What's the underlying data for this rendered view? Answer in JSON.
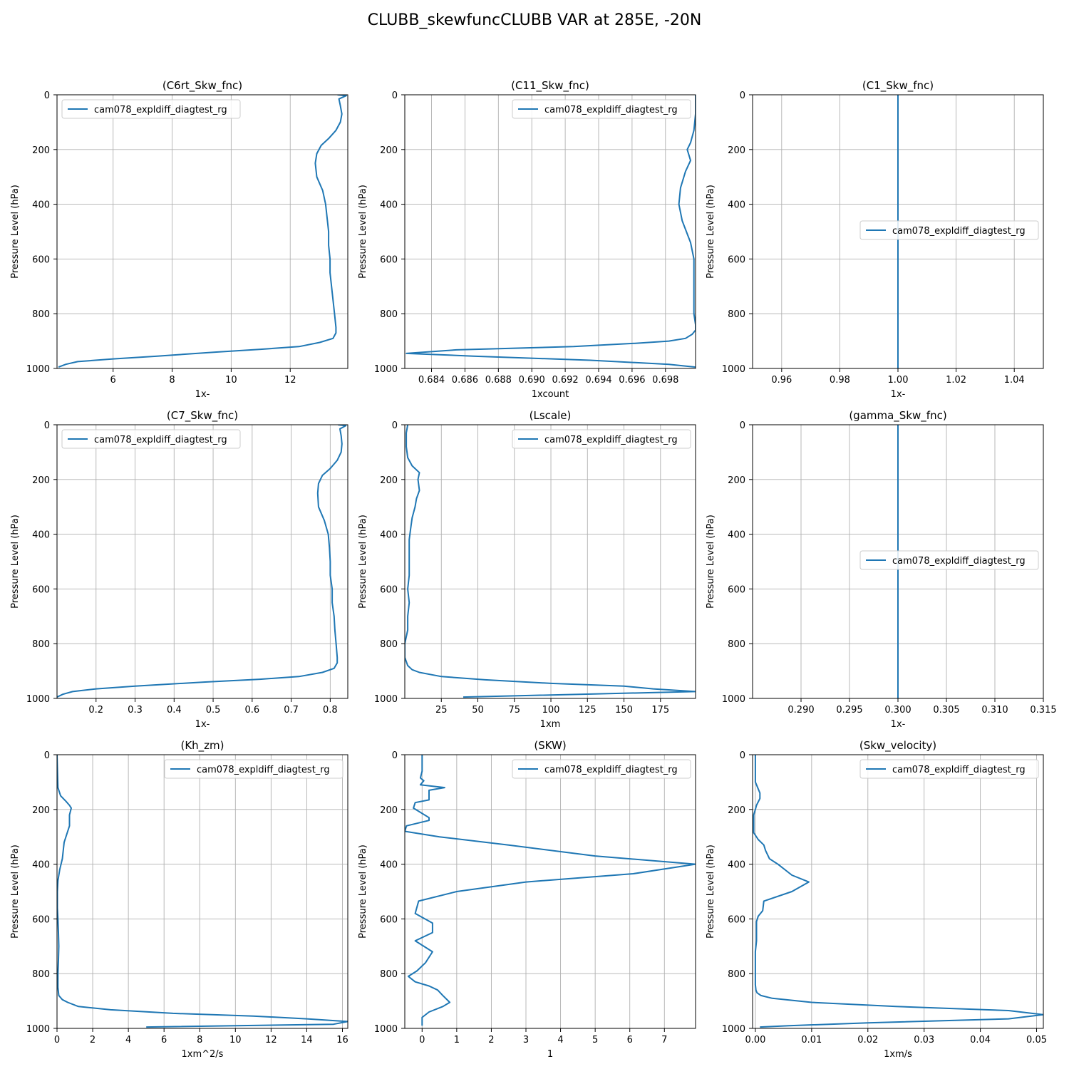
{
  "figure": {
    "title": "CLUBB_skewfuncCLUBB VAR at 285E, -20N"
  },
  "colors": {
    "series": "#1f77b4",
    "grid": "#b0b0b0",
    "legend_border": "#cccccc"
  },
  "chart_data": [
    {
      "type": "line",
      "title": "(C6rt_Skw_fnc)",
      "xlabel": "1x-",
      "ylabel": "Pressure Level (hPa)",
      "xlim": [
        4.1,
        13.95
      ],
      "ylim": [
        1000,
        0
      ],
      "xticks": [
        6,
        8,
        10,
        12
      ],
      "yticks": [
        0,
        200,
        400,
        600,
        800,
        1000
      ],
      "grid": true,
      "legend": "upper left",
      "series": [
        {
          "name": "cam078_expldiff_diagtest_rg",
          "x": [
            13.6,
            13.9,
            13.65,
            13.7,
            13.75,
            13.7,
            13.55,
            13.3,
            13.05,
            12.9,
            12.85,
            12.9,
            13.1,
            13.2,
            13.25,
            13.3,
            13.3,
            13.35,
            13.35,
            13.4,
            13.45,
            13.5,
            13.55,
            13.55,
            13.45,
            13.0,
            12.3,
            11.0,
            9.5,
            7.5,
            6.0,
            4.8,
            4.4,
            4.15
          ],
          "y": [
            0,
            3,
            15,
            40,
            70,
            100,
            130,
            160,
            185,
            215,
            250,
            300,
            350,
            400,
            450,
            500,
            550,
            600,
            650,
            700,
            750,
            800,
            850,
            870,
            890,
            905,
            920,
            930,
            940,
            955,
            965,
            975,
            985,
            995
          ]
        }
      ]
    },
    {
      "type": "line",
      "title": "(C11_Skw_fnc)",
      "xlabel": "1xcount",
      "ylabel": "Pressure Level (hPa)",
      "xlim": [
        0.6824,
        0.6998
      ],
      "ylim": [
        1000,
        0
      ],
      "xticks": [
        0.684,
        0.686,
        0.688,
        0.69,
        0.692,
        0.694,
        0.696,
        0.698
      ],
      "yticks": [
        0,
        200,
        400,
        600,
        800,
        1000
      ],
      "grid": true,
      "legend": "upper right",
      "series": [
        {
          "name": "cam078_expldiff_diagtest_rg",
          "x": [
            0.6998,
            0.6998,
            0.6997,
            0.6995,
            0.6993,
            0.6995,
            0.6992,
            0.6989,
            0.6988,
            0.699,
            0.6995,
            0.6997,
            0.6997,
            0.6997,
            0.6998,
            0.6998,
            0.6996,
            0.6992,
            0.6982,
            0.6962,
            0.6925,
            0.6855,
            0.6825,
            0.6865,
            0.6935,
            0.6982,
            0.6998
          ],
          "y": [
            0,
            70,
            130,
            175,
            200,
            240,
            280,
            340,
            400,
            460,
            540,
            600,
            700,
            800,
            840,
            860,
            875,
            890,
            900,
            908,
            920,
            932,
            945,
            955,
            970,
            985,
            995
          ]
        }
      ]
    },
    {
      "type": "line",
      "title": "(C1_Skw_fnc)",
      "xlabel": "1x-",
      "ylabel": "Pressure Level (hPa)",
      "xlim": [
        0.95,
        1.05
      ],
      "ylim": [
        1000,
        0
      ],
      "xticks": [
        0.96,
        0.98,
        1.0,
        1.02,
        1.04
      ],
      "yticks": [
        0,
        200,
        400,
        600,
        800,
        1000
      ],
      "grid": true,
      "legend": "center right",
      "series": [
        {
          "name": "cam078_expldiff_diagtest_rg",
          "x": [
            1.0,
            1.0
          ],
          "y": [
            0,
            1000
          ]
        }
      ]
    },
    {
      "type": "line",
      "title": "(C7_Skw_fnc)",
      "xlabel": "1x-",
      "ylabel": "Pressure Level (hPa)",
      "xlim": [
        0.1,
        0.845
      ],
      "ylim": [
        1000,
        0
      ],
      "xticks": [
        0.2,
        0.3,
        0.4,
        0.5,
        0.6,
        0.7,
        0.8
      ],
      "yticks": [
        0,
        200,
        400,
        600,
        800,
        1000
      ],
      "grid": true,
      "legend": "upper left",
      "series": [
        {
          "name": "cam078_expldiff_diagtest_rg",
          "x": [
            0.82,
            0.84,
            0.825,
            0.828,
            0.83,
            0.828,
            0.818,
            0.8,
            0.78,
            0.77,
            0.768,
            0.77,
            0.785,
            0.795,
            0.798,
            0.8,
            0.8,
            0.805,
            0.805,
            0.81,
            0.812,
            0.815,
            0.818,
            0.818,
            0.81,
            0.78,
            0.72,
            0.62,
            0.48,
            0.3,
            0.2,
            0.14,
            0.115,
            0.1
          ],
          "y": [
            0,
            3,
            15,
            40,
            70,
            100,
            130,
            160,
            185,
            215,
            250,
            300,
            350,
            400,
            450,
            500,
            550,
            600,
            650,
            700,
            750,
            800,
            850,
            870,
            890,
            905,
            920,
            930,
            940,
            955,
            965,
            975,
            985,
            995
          ]
        }
      ]
    },
    {
      "type": "line",
      "title": "(Lscale)",
      "xlabel": "1xm",
      "ylabel": "Pressure Level (hPa)",
      "xlim": [
        0,
        199
      ],
      "ylim": [
        1000,
        0
      ],
      "xticks": [
        25,
        50,
        75,
        100,
        125,
        150,
        175
      ],
      "yticks": [
        0,
        200,
        400,
        600,
        800,
        1000
      ],
      "grid": true,
      "legend": "upper right",
      "series": [
        {
          "name": "cam078_expldiff_diagtest_rg",
          "x": [
            2,
            1,
            1,
            2,
            5,
            10,
            9,
            10,
            8,
            7,
            5,
            4,
            3,
            3,
            3,
            2,
            3,
            2,
            2,
            0,
            0,
            2,
            5,
            10,
            25,
            55,
            100,
            150,
            170,
            199,
            40
          ],
          "y": [
            0,
            30,
            80,
            120,
            150,
            175,
            200,
            240,
            270,
            300,
            340,
            380,
            420,
            480,
            550,
            600,
            650,
            700,
            750,
            800,
            850,
            880,
            895,
            905,
            920,
            932,
            945,
            955,
            965,
            975,
            995
          ]
        }
      ]
    },
    {
      "type": "line",
      "title": "(gamma_Skw_fnc)",
      "xlabel": "1x-",
      "ylabel": "Pressure Level (hPa)",
      "xlim": [
        0.285,
        0.315
      ],
      "ylim": [
        1000,
        0
      ],
      "xticks": [
        0.29,
        0.295,
        0.3,
        0.305,
        0.31,
        0.315
      ],
      "yticks": [
        0,
        200,
        400,
        600,
        800,
        1000
      ],
      "grid": true,
      "legend": "center right",
      "series": [
        {
          "name": "cam078_expldiff_diagtest_rg",
          "x": [
            0.3,
            0.3
          ],
          "y": [
            0,
            1000
          ]
        }
      ]
    },
    {
      "type": "line",
      "title": "(Kh_zm)",
      "xlabel": "1xm^2/s",
      "ylabel": "Pressure Level (hPa)",
      "xlim": [
        0,
        16.3
      ],
      "ylim": [
        1000,
        0
      ],
      "xticks": [
        0,
        2,
        4,
        6,
        8,
        10,
        12,
        14,
        16
      ],
      "yticks": [
        0,
        200,
        400,
        600,
        800,
        1000
      ],
      "grid": true,
      "legend": "upper right",
      "series": [
        {
          "name": "cam078_expldiff_diagtest_rg",
          "x": [
            0,
            0.05,
            0.2,
            0.5,
            0.7,
            0.8,
            0.7,
            0.7,
            0.6,
            0.4,
            0.3,
            0.15,
            0.05,
            0.02,
            0.02,
            0.05,
            0.08,
            0.1,
            0.08,
            0.05,
            0.05,
            0.1,
            0.3,
            0.6,
            1.2,
            3.0,
            6.5,
            11.0,
            14.0,
            16.3,
            15.5,
            5.0
          ],
          "y": [
            0,
            120,
            150,
            170,
            185,
            195,
            220,
            260,
            280,
            320,
            380,
            420,
            460,
            500,
            560,
            600,
            650,
            700,
            750,
            800,
            850,
            880,
            895,
            905,
            920,
            932,
            945,
            955,
            965,
            975,
            985,
            995
          ]
        }
      ]
    },
    {
      "type": "line",
      "title": "(SKW)",
      "xlabel": "1",
      "ylabel": "Pressure Level (hPa)",
      "xlim": [
        -0.5,
        7.9
      ],
      "ylim": [
        1000,
        0
      ],
      "xticks": [
        0,
        1,
        2,
        3,
        4,
        5,
        6,
        7
      ],
      "yticks": [
        0,
        200,
        400,
        600,
        800,
        1000
      ],
      "grid": true,
      "legend": "upper right",
      "series": [
        {
          "name": "cam078_expldiff_diagtest_rg",
          "x": [
            0,
            0,
            -0.05,
            0.05,
            -0.05,
            0.65,
            0.2,
            0.2,
            0.2,
            0.2,
            -0.2,
            -0.25,
            0.2,
            0.2,
            -0.45,
            -0.5,
            0.5,
            2.5,
            5,
            7.9,
            6.1,
            3.0,
            1.0,
            -0.1,
            -0.2,
            0.3,
            0.3,
            -0.2,
            0.3,
            0.1,
            -0.15,
            -0.4,
            -0.2,
            0.2,
            0.45,
            0.6,
            0.8,
            0.6,
            0.2,
            0.0,
            0.0
          ],
          "y": [
            0,
            60,
            85,
            95,
            110,
            120,
            130,
            145,
            155,
            165,
            175,
            195,
            230,
            240,
            260,
            280,
            300,
            330,
            370,
            400,
            435,
            465,
            500,
            535,
            580,
            615,
            650,
            680,
            720,
            760,
            790,
            810,
            830,
            845,
            860,
            880,
            905,
            920,
            940,
            960,
            990
          ]
        }
      ]
    },
    {
      "type": "line",
      "title": "(Skw_velocity)",
      "xlabel": "1xm/s",
      "ylabel": "Pressure Level (hPa)",
      "xlim": [
        -0.0005,
        0.0512
      ],
      "ylim": [
        1000,
        0
      ],
      "xticks": [
        0.0,
        0.01,
        0.02,
        0.03,
        0.04,
        0.05
      ],
      "yticks": [
        0,
        200,
        400,
        600,
        800,
        1000
      ],
      "grid": true,
      "legend": "upper right",
      "series": [
        {
          "name": "cam078_expldiff_diagtest_rg",
          "x": [
            0.0,
            0.0,
            0.0,
            0.0002,
            0.0008,
            0.0008,
            0.0002,
            0.0,
            -0.0003,
            -0.0003,
            -0.0003,
            0.0005,
            0.0015,
            0.0018,
            0.0025,
            0.004,
            0.0065,
            0.0095,
            0.0065,
            0.0015,
            0.0013,
            0.0005,
            0.0002,
            0.0002,
            0.0002,
            0.0,
            0.0,
            0.0,
            0.0,
            0.0001,
            0.0003,
            0.001,
            0.003,
            0.01,
            0.025,
            0.045,
            0.0512,
            0.045,
            0.02,
            0.006,
            0.0008
          ],
          "y": [
            0,
            50,
            100,
            110,
            140,
            160,
            185,
            200,
            220,
            250,
            285,
            310,
            330,
            350,
            380,
            400,
            440,
            465,
            500,
            535,
            570,
            590,
            610,
            640,
            680,
            720,
            760,
            800,
            840,
            860,
            870,
            880,
            890,
            905,
            920,
            935,
            950,
            965,
            980,
            990,
            995
          ]
        }
      ]
    }
  ]
}
